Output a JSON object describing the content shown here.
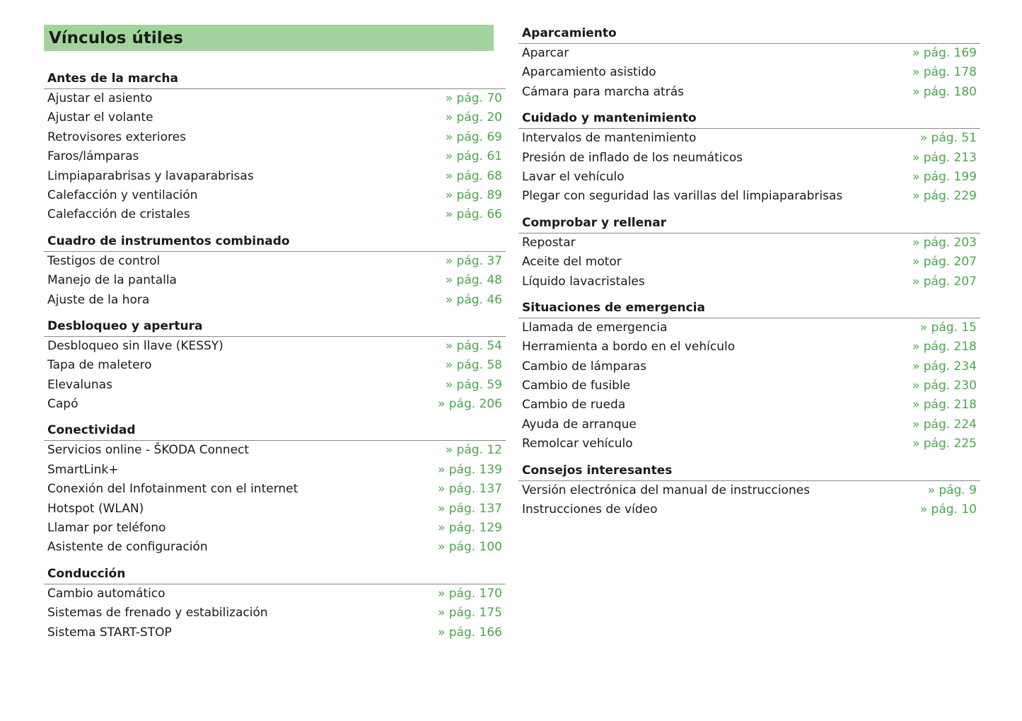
{
  "title": "Vínculos útiles",
  "left": [
    {
      "heading": "Antes de la marcha",
      "items": [
        {
          "label": "Ajustar el asiento",
          "page": "» pág. 70"
        },
        {
          "label": "Ajustar el volante",
          "page": "» pág. 20"
        },
        {
          "label": "Retrovisores exteriores",
          "page": "» pág. 69"
        },
        {
          "label": "Faros/lámparas",
          "page": "» pág. 61"
        },
        {
          "label": "Limpiaparabrisas y lavaparabrisas",
          "page": "» pág. 68"
        },
        {
          "label": "Calefacción y ventilación",
          "page": "» pág. 89"
        },
        {
          "label": "Calefacción de cristales",
          "page": "» pág. 66"
        }
      ]
    },
    {
      "heading": "Cuadro de instrumentos combinado",
      "items": [
        {
          "label": "Testigos de control",
          "page": "» pág. 37"
        },
        {
          "label": "Manejo de la pantalla",
          "page": "» pág. 48"
        },
        {
          "label": "Ajuste de la hora",
          "page": "» pág. 46"
        }
      ]
    },
    {
      "heading": "Desbloqueo y apertura",
      "items": [
        {
          "label": "Desbloqueo sin llave (KESSY)",
          "page": "» pág. 54"
        },
        {
          "label": "Tapa de maletero",
          "page": "» pág. 58"
        },
        {
          "label": "Elevalunas",
          "page": "» pág. 59"
        },
        {
          "label": "Capó",
          "page": "» pág. 206"
        }
      ]
    },
    {
      "heading": "Conectividad",
      "items": [
        {
          "label": "Servicios online - ŠKODA Connect",
          "page": "» pág. 12"
        },
        {
          "label": "SmartLink+",
          "page": "» pág. 139"
        },
        {
          "label": "Conexión del Infotainment con el internet",
          "page": "» pág. 137"
        },
        {
          "label": "Hotspot (WLAN)",
          "page": "» pág. 137"
        },
        {
          "label": "Llamar por teléfono",
          "page": "» pág. 129"
        },
        {
          "label": "Asistente de configuración",
          "page": "» pág. 100"
        }
      ]
    },
    {
      "heading": "Conducción",
      "items": [
        {
          "label": "Cambio automático",
          "page": "» pág. 170"
        },
        {
          "label": "Sistemas de frenado y estabilización",
          "page": "» pág. 175"
        },
        {
          "label": "Sistema START-STOP",
          "page": "» pág. 166"
        }
      ]
    }
  ],
  "right": [
    {
      "heading": "Aparcamiento",
      "items": [
        {
          "label": "Aparcar",
          "page": "» pág. 169"
        },
        {
          "label": "Aparcamiento asistido",
          "page": "» pág. 178"
        },
        {
          "label": "Cámara para marcha atrás",
          "page": "» pág. 180"
        }
      ]
    },
    {
      "heading": "Cuidado y mantenimiento",
      "items": [
        {
          "label": "Intervalos de mantenimiento",
          "page": "» pág. 51"
        },
        {
          "label": "Presión de inflado de los neumáticos",
          "page": "» pág. 213"
        },
        {
          "label": "Lavar el vehículo",
          "page": "» pág. 199"
        },
        {
          "label": "Plegar con seguridad las varillas del limpiaparabrisas",
          "page": "» pág. 229"
        }
      ]
    },
    {
      "heading": "Comprobar y rellenar",
      "items": [
        {
          "label": "Repostar",
          "page": "» pág. 203"
        },
        {
          "label": "Aceite del motor",
          "page": "» pág. 207"
        },
        {
          "label": "Líquido lavacristales",
          "page": "» pág. 207"
        }
      ]
    },
    {
      "heading": "Situaciones de emergencia",
      "items": [
        {
          "label": "Llamada de emergencia",
          "page": "» pág. 15"
        },
        {
          "label": "Herramienta a bordo en el vehículo",
          "page": "» pág. 218"
        },
        {
          "label": "Cambio de lámparas",
          "page": "» pág. 234"
        },
        {
          "label": "Cambio de fusible",
          "page": "» pág. 230"
        },
        {
          "label": "Cambio de rueda",
          "page": "» pág. 218"
        },
        {
          "label": "Ayuda de arranque",
          "page": "» pág. 224"
        },
        {
          "label": "Remolcar vehículo",
          "page": "» pág. 225"
        }
      ]
    },
    {
      "heading": "Consejos interesantes",
      "items": [
        {
          "label": "Versión electrónica del manual de instrucciones",
          "page": "» pág. 9"
        },
        {
          "label": "Instrucciones de vídeo",
          "page": "» pág. 10"
        }
      ]
    }
  ],
  "colors": {
    "accent": "#4aa84a",
    "title_bg": "#a3d39c"
  }
}
